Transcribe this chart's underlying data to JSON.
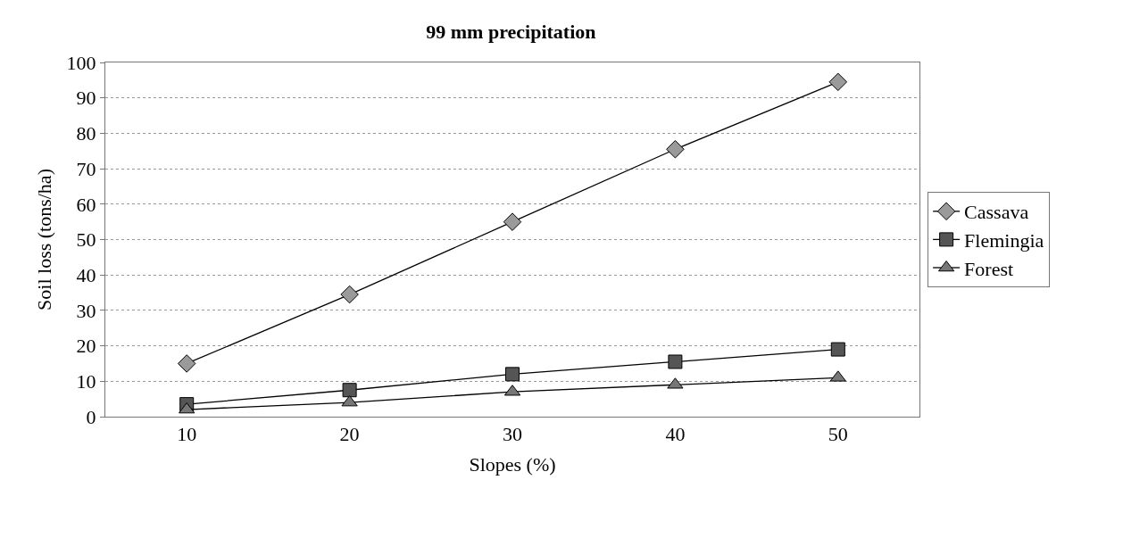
{
  "chart_data": {
    "type": "line",
    "title": "99 mm precipitation",
    "xlabel": "Slopes (%)",
    "ylabel": "Soil loss (tons/ha)",
    "categories": [
      "10",
      "20",
      "30",
      "40",
      "50"
    ],
    "series": [
      {
        "name": "Cassava",
        "color": "#9a9a9a",
        "marker": "diamond",
        "values": [
          15,
          34.5,
          55,
          75.5,
          94.5
        ]
      },
      {
        "name": "Flemingia",
        "color": "#555555",
        "marker": "square",
        "values": [
          3.5,
          7.5,
          12,
          15.5,
          19
        ]
      },
      {
        "name": "Forest",
        "color": "#777777",
        "marker": "triangle",
        "values": [
          2,
          4,
          7,
          9,
          11
        ]
      }
    ],
    "ylim": [
      0,
      100
    ],
    "yticks": [
      0,
      10,
      20,
      30,
      40,
      50,
      60,
      70,
      80,
      90,
      100
    ],
    "grid": "y",
    "legend": "right",
    "line_style": "solid"
  }
}
